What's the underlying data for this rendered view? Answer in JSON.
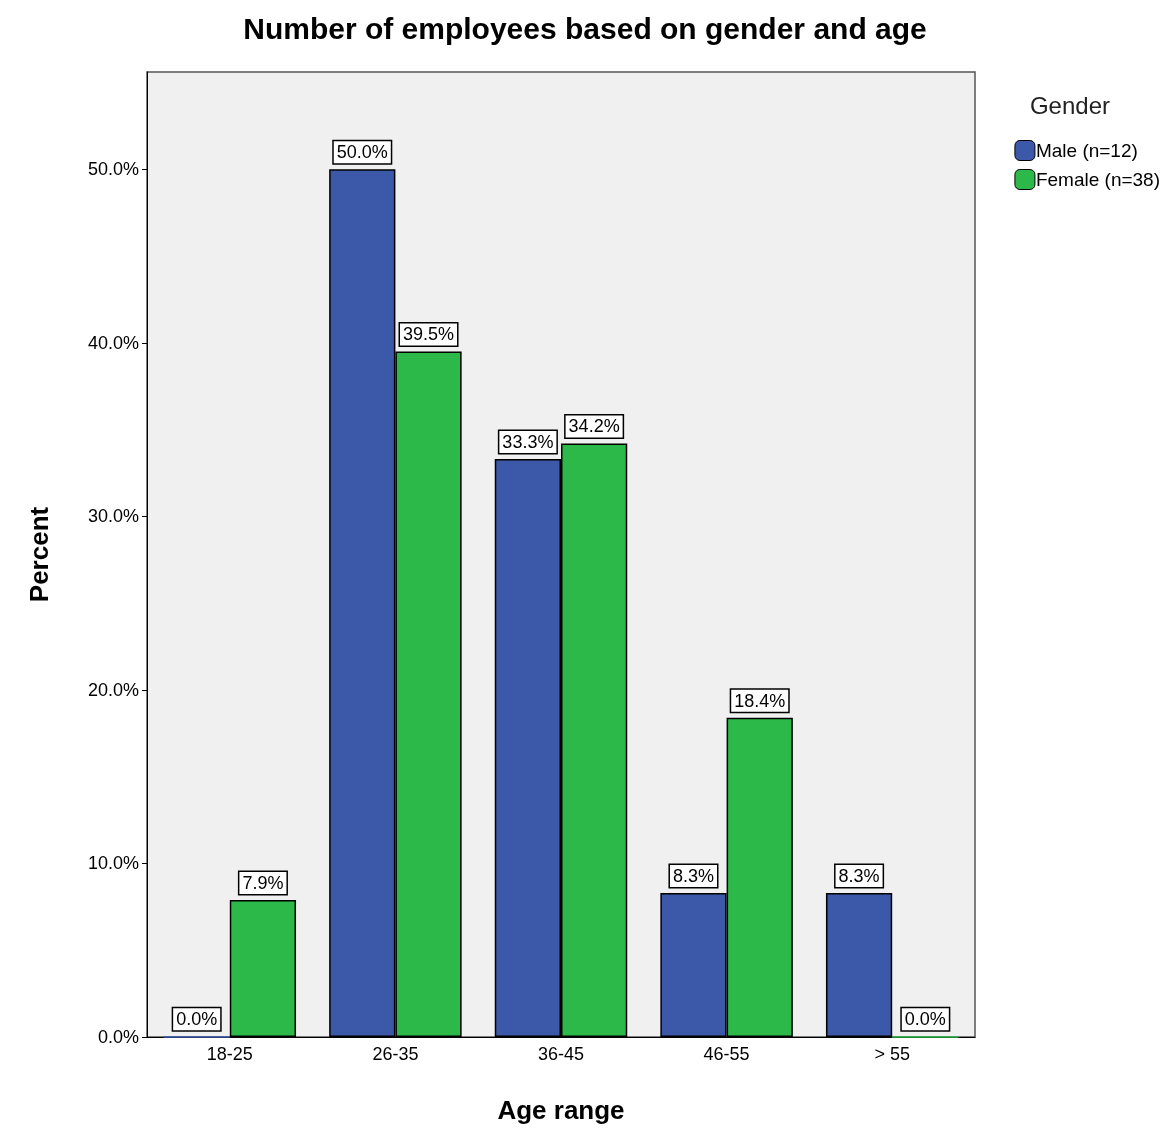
{
  "chart_data": {
    "type": "bar",
    "title": "Number of employees based on gender and age",
    "xlabel": "Age range",
    "ylabel": "Percent",
    "legend_title": "Gender",
    "categories": [
      "18-25",
      "26-35",
      "36-45",
      "46-55",
      "> 55"
    ],
    "series": [
      {
        "name": "Male (n=12)",
        "color": "#3c58a8",
        "values": [
          0.0,
          50.0,
          33.3,
          8.3,
          8.3
        ],
        "value_labels": [
          "0.0%",
          "50.0%",
          "33.3%",
          "8.3%",
          "8.3%"
        ]
      },
      {
        "name": "Female (n=38)",
        "color": "#2db84a",
        "values": [
          7.9,
          39.5,
          34.2,
          18.4,
          0.0
        ],
        "value_labels": [
          "7.9%",
          "39.5%",
          "34.2%",
          "18.4%",
          "0.0%"
        ]
      }
    ],
    "ylim": [
      0,
      55.6
    ],
    "yticks": [
      {
        "value": 0,
        "label": "0.0%"
      },
      {
        "value": 10,
        "label": "10.0%"
      },
      {
        "value": 20,
        "label": "20.0%"
      },
      {
        "value": 30,
        "label": "30.0%"
      },
      {
        "value": 40,
        "label": "40.0%"
      },
      {
        "value": 50,
        "label": "50.0%"
      }
    ],
    "grid": false,
    "legend": "top right"
  }
}
